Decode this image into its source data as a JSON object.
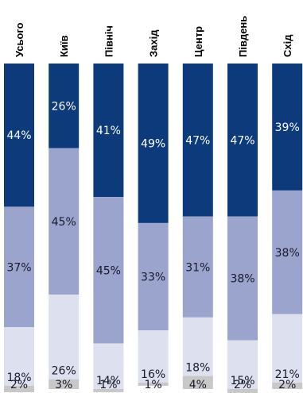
{
  "chart_data": {
    "type": "bar",
    "stacked": true,
    "orientation": "vertical",
    "categories": [
      "Усього",
      "Київ",
      "Північ",
      "Захід",
      "Центр",
      "Південь",
      "Схід"
    ],
    "series": [
      {
        "values": [
          44,
          26,
          41,
          49,
          47,
          47,
          39
        ],
        "labels": [
          "44%",
          "26%",
          "41%",
          "49%",
          "47%",
          "47%",
          "39%"
        ],
        "color": "#0d3a7a",
        "label_color": "#ffffff"
      },
      {
        "values": [
          37,
          45,
          45,
          33,
          31,
          38,
          38
        ],
        "labels": [
          "37%",
          "45%",
          "45%",
          "33%",
          "31%",
          "38%",
          "38%"
        ],
        "color": "#9aa4cc",
        "label_color": "#1a1a2e"
      },
      {
        "values": [
          18,
          26,
          14,
          16,
          18,
          15,
          21
        ],
        "labels": [
          "18%",
          "26%",
          "14%",
          "16%",
          "18%",
          "15%",
          "21%"
        ],
        "color": "#dde0ef",
        "label_color": "#1a1a2e"
      },
      {
        "values": [
          2,
          3,
          1,
          1,
          4,
          2,
          2
        ],
        "labels": [
          "2%",
          "3%",
          "1%",
          "1%",
          "4%",
          "2%",
          "2%"
        ],
        "color": "#c8c8c8",
        "label_color": "#1a1a2e"
      }
    ],
    "ylim": [
      0,
      100
    ],
    "legend": "none",
    "grid": false
  }
}
